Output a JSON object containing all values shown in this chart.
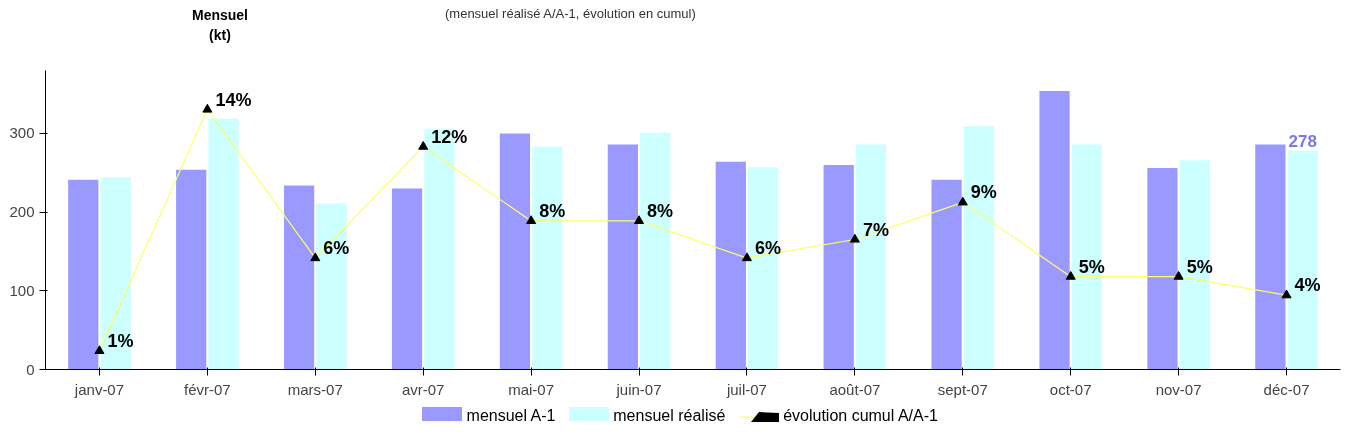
{
  "chart_data": {
    "type": "bar",
    "title": "(mensuel réalisé A/A-1, évolution en cumul)",
    "ylabel": "Mensuel\n(kt)",
    "categories": [
      "janv-07",
      "févr-07",
      "mars-07",
      "avr-07",
      "mai-07",
      "juin-07",
      "juil-07",
      "août-07",
      "sept-07",
      "oct-07",
      "nov-07",
      "déc-07"
    ],
    "series": [
      {
        "name": "mensuel A-1",
        "color": "#9999ff",
        "values": [
          241,
          254,
          234,
          230,
          300,
          286,
          264,
          260,
          241,
          354,
          256,
          286
        ]
      },
      {
        "name": "mensuel réalisé",
        "color": "#ccffff",
        "values": [
          244,
          319,
          211,
          306,
          283,
          301,
          257,
          286,
          309,
          286,
          266,
          278
        ],
        "value_labels": [
          null,
          null,
          null,
          null,
          null,
          null,
          null,
          null,
          null,
          null,
          null,
          "278"
        ]
      },
      {
        "name": "évolution cumul A/A-1",
        "type": "line",
        "axis": "y2",
        "color": "#ffff66",
        "marker": "triangle",
        "values": [
          1,
          14,
          6,
          12,
          8,
          8,
          6,
          7,
          9,
          5,
          5,
          4
        ],
        "value_labels": [
          "1%",
          "14%",
          "6%",
          "12%",
          "8%",
          "8%",
          "6%",
          "7%",
          "9%",
          "5%",
          "5%",
          "4%"
        ]
      }
    ],
    "ylim": [
      0,
      380
    ],
    "yticks": [
      0,
      100,
      200,
      300
    ],
    "grid": false,
    "legend": "bottom"
  }
}
